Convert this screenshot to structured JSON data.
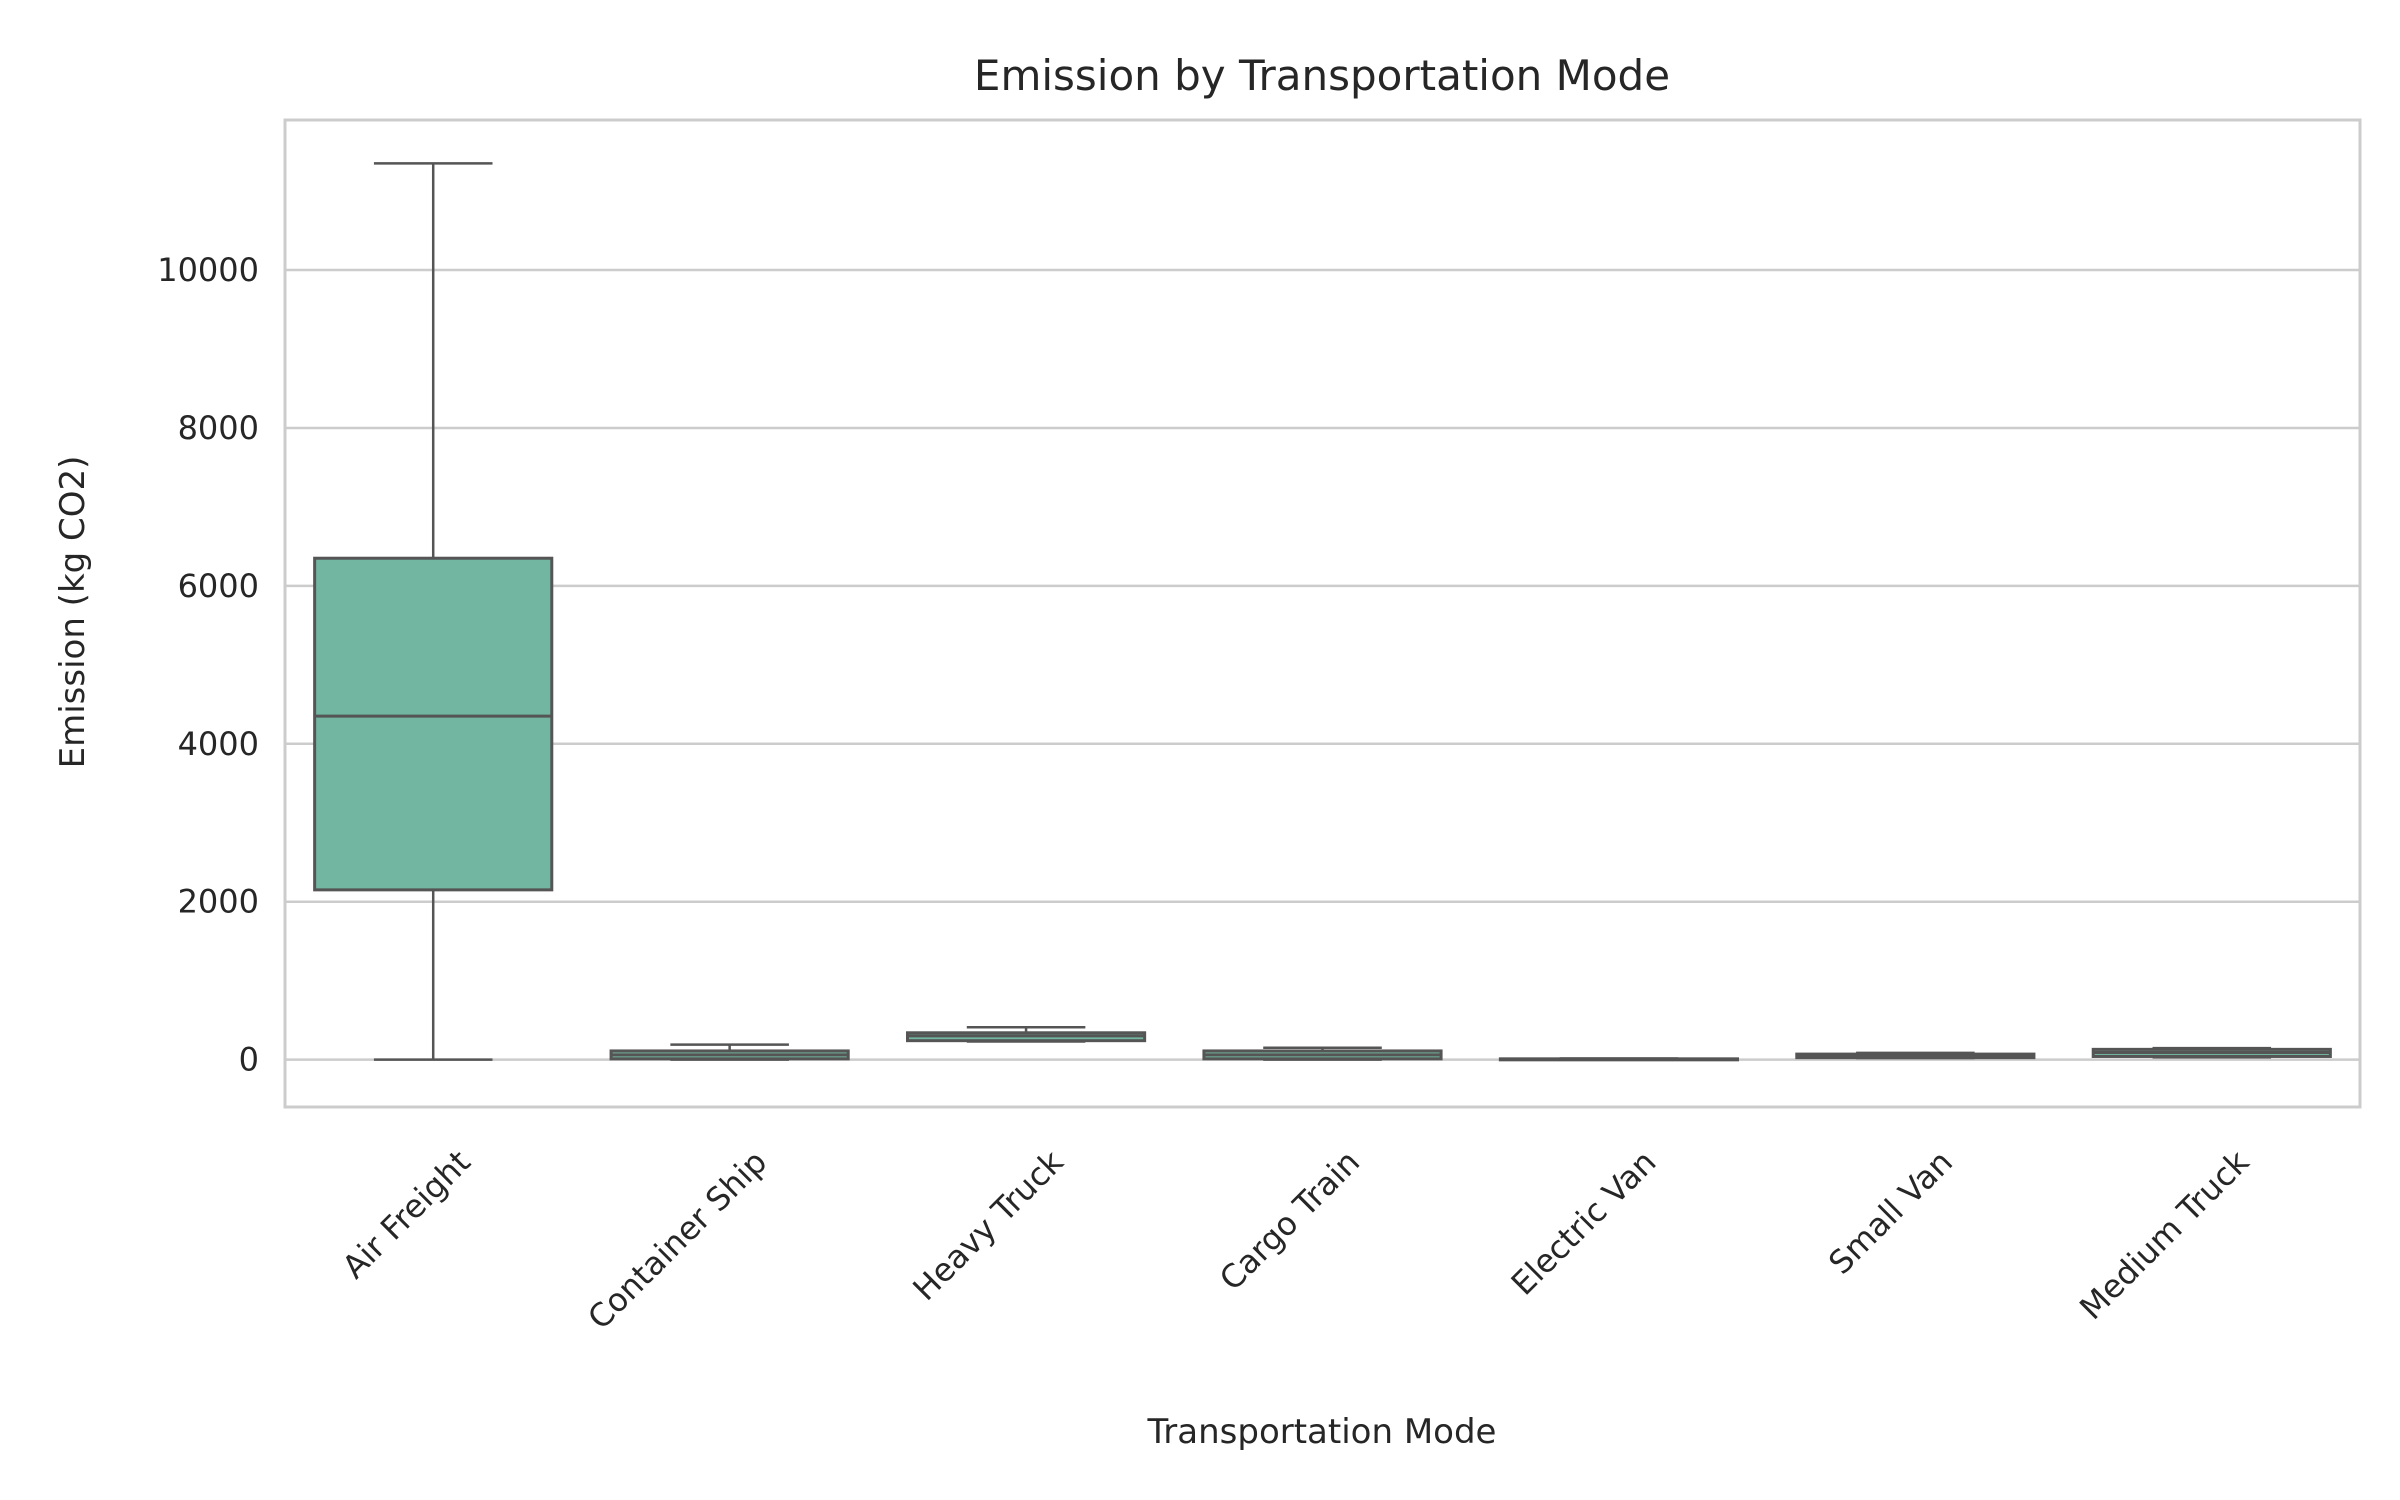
{
  "chart_data": {
    "type": "box",
    "title": "Emission by Transportation Mode",
    "xlabel": "Transportation Mode",
    "ylabel": "Emission (kg CO2)",
    "ylim": [
      -600,
      11900
    ],
    "yticks": [
      0,
      2000,
      4000,
      6000,
      8000,
      10000
    ],
    "grid": true,
    "box_color": "#72b6a1",
    "line_color": "#555555",
    "categories": [
      "Air Freight",
      "Container Ship",
      "Heavy Truck",
      "Cargo Train",
      "Electric Van",
      "Small Van",
      "Medium Truck"
    ],
    "boxes": [
      {
        "category": "Air Freight",
        "min": 0,
        "q1": 2150,
        "median": 4350,
        "q3": 6350,
        "max": 11350
      },
      {
        "category": "Container Ship",
        "min": 0,
        "q1": 10,
        "median": 60,
        "q3": 110,
        "max": 190
      },
      {
        "category": "Heavy Truck",
        "min": 230,
        "q1": 240,
        "median": 300,
        "q3": 340,
        "max": 410
      },
      {
        "category": "Cargo Train",
        "min": 0,
        "q1": 10,
        "median": 60,
        "q3": 110,
        "max": 150
      },
      {
        "category": "Electric Van",
        "min": 0,
        "q1": 0,
        "median": 5,
        "q3": 10,
        "max": 15
      },
      {
        "category": "Small Van",
        "min": 20,
        "q1": 25,
        "median": 50,
        "q3": 70,
        "max": 85
      },
      {
        "category": "Medium Truck",
        "min": 30,
        "q1": 40,
        "median": 90,
        "q3": 130,
        "max": 145
      }
    ]
  }
}
